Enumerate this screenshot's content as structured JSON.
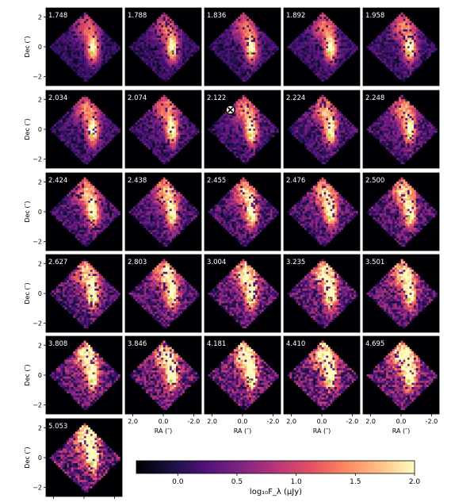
{
  "figure": {
    "ylabel": "Dec (″)",
    "xlabel": "RA (″)",
    "colorbar_label": "log₁₀F_λ (μJy)"
  },
  "chart_data": {
    "type": "heatmap",
    "panel_labels": [
      "1.748",
      "1.788",
      "1.836",
      "1.892",
      "1.958",
      "2.034",
      "2.074",
      "2.122",
      "2.224",
      "2.248",
      "2.424",
      "2.438",
      "2.455",
      "2.476",
      "2.500",
      "2.627",
      "2.803",
      "3.004",
      "3.235",
      "3.501",
      "3.808",
      "3.846",
      "4.181",
      "4.410",
      "4.695",
      "5.053"
    ],
    "rows": 6,
    "cols": 5,
    "xlim": [
      2.5,
      -2.5
    ],
    "ylim": [
      -2.6,
      2.6
    ],
    "x_ticks": [
      -2.0,
      0.0,
      2.0
    ],
    "x_tick_labels": [
      "-2.0",
      "0.0",
      "2.0"
    ],
    "y_ticks": [
      -2,
      0,
      2
    ],
    "y_tick_labels": [
      "−2",
      "0",
      "2"
    ],
    "source_position": [
      -0.5,
      -0.4
    ],
    "source_marker": "star",
    "marked_panel": "2.122",
    "marked_position": [
      0.8,
      1.3
    ],
    "marked_marker": "circled-x",
    "colorbar": {
      "min": -0.35,
      "max": 2.0,
      "ticks": [
        0.0,
        0.5,
        1.0,
        1.5,
        2.0
      ],
      "tick_labels": [
        "0.0",
        "0.5",
        "1.0",
        "1.5",
        "2.0"
      ],
      "colormap": "magma"
    },
    "colors": {
      "background": "#000004",
      "star": "#c7c83a",
      "marker_fill": "#ffffff"
    }
  }
}
